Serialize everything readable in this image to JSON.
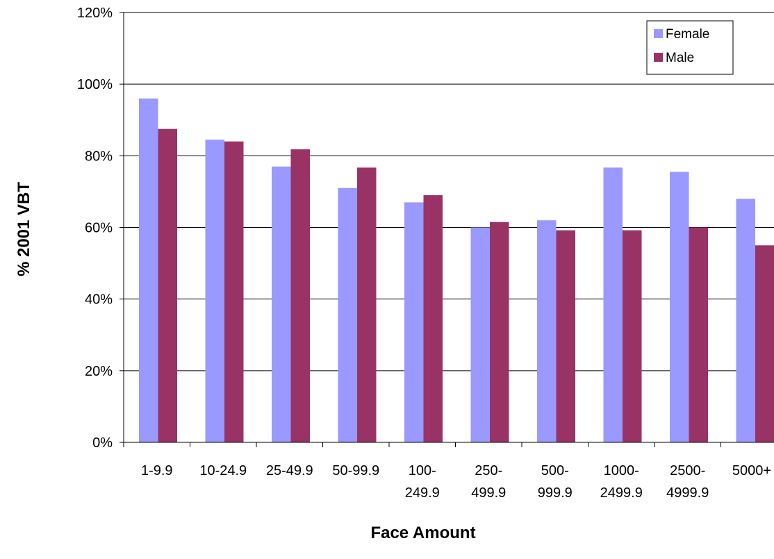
{
  "chart_data": {
    "type": "bar",
    "title": "",
    "xlabel": "Face Amount",
    "ylabel": "% 2001 VBT",
    "ylim": [
      0,
      120
    ],
    "yticks": [
      "0%",
      "20%",
      "40%",
      "60%",
      "80%",
      "100%",
      "120%"
    ],
    "ytick_values": [
      0,
      20,
      40,
      60,
      80,
      100,
      120
    ],
    "grid": true,
    "legend_position": "top-right",
    "categories": [
      [
        "1-9.9"
      ],
      [
        "10-24.9"
      ],
      [
        "25-49.9"
      ],
      [
        "50-99.9"
      ],
      [
        "100-",
        "249.9"
      ],
      [
        "250-",
        "499.9"
      ],
      [
        "500-",
        "999.9"
      ],
      [
        "1000-",
        "2499.9"
      ],
      [
        "2500-",
        "4999.9"
      ],
      [
        "5000+"
      ]
    ],
    "series": [
      {
        "name": "Female",
        "color": "#9999ff",
        "values": [
          96,
          84.5,
          77,
          71,
          67,
          60,
          62,
          76.7,
          75.5,
          68
        ]
      },
      {
        "name": "Male",
        "color": "#993366",
        "values": [
          87.5,
          84,
          81.8,
          76.7,
          69,
          61.5,
          59.2,
          59.2,
          60,
          55
        ]
      }
    ]
  }
}
